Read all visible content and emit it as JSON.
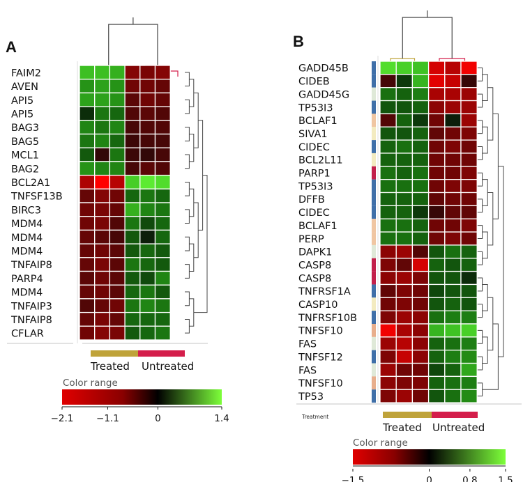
{
  "colors": {
    "treated": "#bfa33a",
    "untreated": "#d41e4b",
    "dendro_top": "#444444",
    "dendro_treated": "#bfa33a",
    "dendro_untreated": "#d41e4b",
    "cell_border": "#ffffff",
    "divider": "#d0d0d0"
  },
  "chart_data": [
    {
      "type": "heatmap",
      "panel": "A",
      "genes": [
        "FAIM2",
        "AVEN",
        "API5",
        "API5",
        "BAG3",
        "BAG5",
        "MCL1",
        "BAG2",
        "BCL2A1",
        "TNFSF13B",
        "BIRC3",
        "MDM4",
        "MDM4",
        "MDM4",
        "TNFAIP8",
        "PARP4",
        "MDM4",
        "TNFAIP3",
        "TNFAIP8",
        "CFLAR"
      ],
      "group_colors": [
        "#3f6fa8",
        "#3f6fa8",
        "#3f6fa8",
        "#3f6fa8",
        "#f3ebc0",
        "#f3ebc0",
        "#e8ae8c",
        "#7fa6d0",
        "#9fc7d8",
        "#f3ebc0",
        "#dfe9d8",
        "#c21f4b",
        "#c21f4b",
        "#c21f4b",
        "#f3ebc0",
        "#3f6fa8",
        "#c21f4b",
        "#f0c6a2",
        "#f3ebc0",
        "#c21f4b"
      ],
      "columns": [
        "Treated",
        "Treated",
        "Treated",
        "Untreated",
        "Untreated",
        "Untreated"
      ],
      "values": [
        [
          1.1,
          1.1,
          1.0,
          -0.9,
          -0.8,
          -0.9
        ],
        [
          0.8,
          0.9,
          0.8,
          -0.7,
          -0.7,
          -0.6
        ],
        [
          0.9,
          0.9,
          0.8,
          -0.5,
          -0.7,
          -0.6
        ],
        [
          0.1,
          0.6,
          0.5,
          -0.4,
          -0.5,
          -0.4
        ],
        [
          0.7,
          0.6,
          0.7,
          -0.3,
          -0.4,
          -0.4
        ],
        [
          0.6,
          0.7,
          0.5,
          -0.2,
          -0.3,
          -0.3
        ],
        [
          0.4,
          -0.1,
          0.6,
          -0.2,
          -0.1,
          -0.3
        ],
        [
          0.8,
          0.7,
          0.7,
          -0.3,
          -0.5,
          -0.4
        ],
        [
          -1.3,
          -2.1,
          -1.4,
          1.2,
          1.4,
          1.3
        ],
        [
          -0.6,
          -0.9,
          -0.7,
          0.5,
          0.6,
          0.5
        ],
        [
          -0.7,
          -0.8,
          -0.6,
          1.0,
          0.7,
          0.6
        ],
        [
          -0.7,
          -0.8,
          -0.4,
          0.6,
          0.3,
          0.5
        ],
        [
          -0.6,
          -0.5,
          -0.3,
          0.4,
          0.0,
          0.5
        ],
        [
          -0.6,
          -0.7,
          -0.5,
          0.4,
          0.5,
          0.4
        ],
        [
          -0.6,
          -0.8,
          -0.5,
          0.6,
          0.5,
          0.4
        ],
        [
          -0.5,
          -0.7,
          -0.5,
          0.4,
          0.3,
          0.7
        ],
        [
          -0.6,
          -0.7,
          -0.5,
          0.5,
          0.6,
          0.4
        ],
        [
          -0.4,
          -0.6,
          -0.7,
          0.6,
          0.7,
          0.6
        ],
        [
          -0.6,
          -0.8,
          -0.6,
          0.5,
          0.5,
          0.5
        ],
        [
          -0.7,
          -0.9,
          -0.8,
          0.4,
          0.5,
          0.6
        ]
      ],
      "legend": {
        "treated_label": "Treated",
        "untreated_label": "Untreated"
      },
      "color_range": {
        "title": "Color range",
        "min": -2.1,
        "max": 1.4,
        "ticks": [
          "-2.1",
          "-1.1",
          "0",
          "1.4"
        ]
      }
    },
    {
      "type": "heatmap",
      "panel": "B",
      "genes": [
        "GADD45B",
        "CIDEB",
        "GADD45G",
        "TP53I3",
        "BCLAF1",
        "SIVA1",
        "CIDEC",
        "BCL2L11",
        "PARP1",
        "TP53I3",
        "DFFB",
        "CIDEC",
        "BCLAF1",
        "PERP",
        "DAPK1",
        "CASP8",
        "CASP8",
        "TNFRSF1A",
        "CASP10",
        "TNFRSF10B",
        "TNFSF10",
        "FAS",
        "TNFSF12",
        "FAS",
        "TNFSF10",
        "TP53"
      ],
      "group_colors": [
        "#3f6fa8",
        "#3f6fa8",
        "#dfe9d8",
        "#3f6fa8",
        "#f0c6a2",
        "#f3ebc0",
        "#3f6fa8",
        "#f3ebc0",
        "#c21f4b",
        "#3f6fa8",
        "#3f6fa8",
        "#3f6fa8",
        "#f0c6a2",
        "#f0c6a2",
        "#dfe9d8",
        "#c21f4b",
        "#c21f4b",
        "#3f6fa8",
        "#f3ebc0",
        "#3f6fa8",
        "#e8ae8c",
        "#dfe9d8",
        "#3f6fa8",
        "#dfe9d8",
        "#e8ae8c",
        "#3f6fa8"
      ],
      "columns": [
        "Treated",
        "Treated",
        "Treated",
        "Untreated",
        "Untreated",
        "Untreated"
      ],
      "values": [
        [
          1.4,
          1.3,
          1.2,
          -1.2,
          -1.0,
          -1.4
        ],
        [
          -0.2,
          0.2,
          1.1,
          -1.3,
          -1.1,
          -0.1
        ],
        [
          0.6,
          0.5,
          0.7,
          -0.9,
          -0.9,
          -0.8
        ],
        [
          0.4,
          0.4,
          0.5,
          -0.7,
          -0.8,
          -0.8
        ],
        [
          -0.3,
          0.5,
          0.2,
          -0.5,
          0.0,
          -0.8
        ],
        [
          0.4,
          0.4,
          0.5,
          -0.4,
          -0.5,
          -0.6
        ],
        [
          0.5,
          0.6,
          0.5,
          -0.5,
          -0.6,
          -0.5
        ],
        [
          0.5,
          0.5,
          0.5,
          -0.5,
          -0.5,
          -0.5
        ],
        [
          0.6,
          0.5,
          0.6,
          -0.5,
          -0.5,
          -0.6
        ],
        [
          0.6,
          0.6,
          0.6,
          -0.5,
          -0.6,
          -0.6
        ],
        [
          0.5,
          0.5,
          0.5,
          -0.4,
          -0.5,
          -0.5
        ],
        [
          0.5,
          0.5,
          0.2,
          -0.1,
          -0.4,
          -0.4
        ],
        [
          0.6,
          0.6,
          0.5,
          -0.5,
          -0.5,
          -0.6
        ],
        [
          0.6,
          0.6,
          0.5,
          -0.5,
          -0.6,
          -0.5
        ],
        [
          -0.7,
          -0.8,
          -0.3,
          0.4,
          0.6,
          0.5
        ],
        [
          -0.6,
          -0.4,
          -1.2,
          0.5,
          0.4,
          0.5
        ],
        [
          -0.7,
          -0.8,
          -0.6,
          0.4,
          0.4,
          0.1
        ],
        [
          -0.4,
          -0.6,
          -0.5,
          0.3,
          0.4,
          0.4
        ],
        [
          -0.5,
          -0.6,
          -0.5,
          0.4,
          0.5,
          0.4
        ],
        [
          -0.6,
          -0.8,
          -0.7,
          0.6,
          0.7,
          0.7
        ],
        [
          -1.4,
          -0.9,
          -0.7,
          1.1,
          1.2,
          1.3
        ],
        [
          -0.8,
          -1.0,
          -0.7,
          0.5,
          0.6,
          0.7
        ],
        [
          -0.6,
          -1.1,
          -0.7,
          0.5,
          0.7,
          0.8
        ],
        [
          -0.8,
          -0.5,
          -0.5,
          0.3,
          0.5,
          1.0
        ],
        [
          -0.7,
          -0.6,
          -0.6,
          0.5,
          0.6,
          0.7
        ],
        [
          -0.6,
          -0.8,
          -0.5,
          0.4,
          0.6,
          0.8
        ]
      ],
      "legend": {
        "title": "Treatment",
        "treated_label": "Treated",
        "untreated_label": "Untreated"
      },
      "color_range": {
        "title": "Color range",
        "min": -1.5,
        "max": 1.5,
        "ticks": [
          "-1.5",
          "0",
          "0.8",
          "1.5"
        ]
      }
    }
  ]
}
